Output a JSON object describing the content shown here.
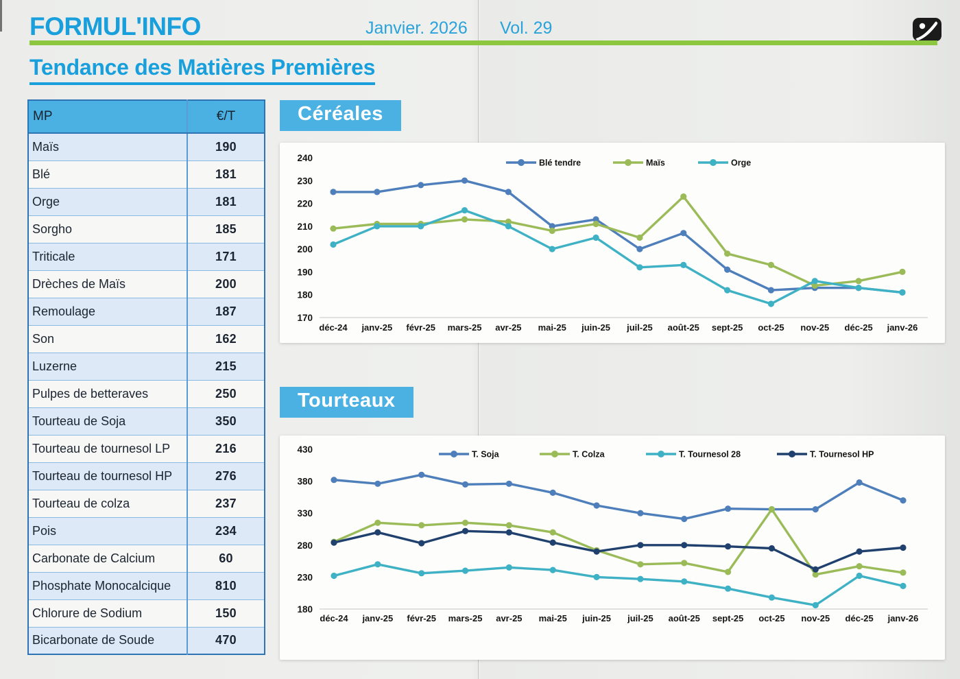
{
  "page": {
    "brand": "FORMUL'INFO",
    "date": "Janvier. 2026",
    "volume": "Vol. 29",
    "title": "Tendance des Matières Premières"
  },
  "colors": {
    "accent_blue": "#189fdc",
    "banner_blue": "#4bb1e3",
    "green_bar": "#8dc63f",
    "table_border": "#2e74b5"
  },
  "sections": {
    "cereales": "Céréales",
    "tourteaux": "Tourteaux"
  },
  "table": {
    "headers": [
      "MP",
      "€/T"
    ],
    "rows": [
      {
        "mp": "Maïs",
        "price": "190"
      },
      {
        "mp": "Blé",
        "price": "181"
      },
      {
        "mp": "Orge",
        "price": "181"
      },
      {
        "mp": "Sorgho",
        "price": "185"
      },
      {
        "mp": "Triticale",
        "price": "171"
      },
      {
        "mp": "Drèches de Maïs",
        "price": "200"
      },
      {
        "mp": "Remoulage",
        "price": "187"
      },
      {
        "mp": "Son",
        "price": "162"
      },
      {
        "mp": "Luzerne",
        "price": "215"
      },
      {
        "mp": "Pulpes de betteraves",
        "price": "250"
      },
      {
        "mp": "Tourteau de Soja",
        "price": "350"
      },
      {
        "mp": "Tourteau de tournesol LP",
        "price": "216"
      },
      {
        "mp": "Tourteau de tournesol HP",
        "price": "276"
      },
      {
        "mp": "Tourteau de colza",
        "price": "237"
      },
      {
        "mp": "Pois",
        "price": "234"
      },
      {
        "mp": "Carbonate de Calcium",
        "price": "60"
      },
      {
        "mp": "Phosphate Monocalcique",
        "price": "810"
      },
      {
        "mp": "Chlorure de Sodium",
        "price": "150"
      },
      {
        "mp": "Bicarbonate de Soude",
        "price": "470"
      }
    ]
  },
  "chart_data": [
    {
      "type": "line",
      "title": "Céréales",
      "categories": [
        "déc-24",
        "janv-25",
        "févr-25",
        "mars-25",
        "avr-25",
        "mai-25",
        "juin-25",
        "juil-25",
        "août-25",
        "sept-25",
        "oct-25",
        "nov-25",
        "déc-25",
        "janv-26"
      ],
      "ylim": [
        170,
        240
      ],
      "yticks": [
        240,
        230,
        220,
        210,
        200,
        190,
        180,
        170
      ],
      "grid": false,
      "legend_position": "top",
      "series": [
        {
          "name": "Blé tendre",
          "color": "#4e7fbb",
          "values": [
            225,
            225,
            228,
            230,
            225,
            210,
            213,
            200,
            207,
            191,
            182,
            183,
            183,
            181
          ]
        },
        {
          "name": "Maïs",
          "color": "#9bbb59",
          "values": [
            209,
            211,
            211,
            213,
            212,
            208,
            211,
            205,
            223,
            198,
            193,
            184,
            186,
            190
          ]
        },
        {
          "name": "Orge",
          "color": "#3fb1c5",
          "values": [
            202,
            210,
            210,
            217,
            210,
            200,
            205,
            192,
            193,
            182,
            176,
            186,
            183,
            181
          ]
        }
      ]
    },
    {
      "type": "line",
      "title": "Tourteaux",
      "categories": [
        "déc-24",
        "janv-25",
        "févr-25",
        "mars-25",
        "avr-25",
        "mai-25",
        "juin-25",
        "juil-25",
        "août-25",
        "sept-25",
        "oct-25",
        "nov-25",
        "déc-25",
        "janv-26"
      ],
      "ylim": [
        180,
        430
      ],
      "yticks": [
        430,
        380,
        330,
        280,
        230,
        180
      ],
      "grid": false,
      "legend_position": "top",
      "series": [
        {
          "name": "T. Soja",
          "color": "#4e7fbb",
          "values": [
            382,
            376,
            390,
            375,
            376,
            362,
            342,
            330,
            321,
            337,
            336,
            336,
            378,
            350
          ]
        },
        {
          "name": "T. Colza",
          "color": "#9bbb59",
          "values": [
            285,
            315,
            311,
            315,
            311,
            300,
            272,
            250,
            252,
            238,
            336,
            234,
            247,
            237
          ]
        },
        {
          "name": "T. Tournesol 28",
          "color": "#3fb1c5",
          "values": [
            232,
            250,
            236,
            240,
            245,
            241,
            230,
            227,
            223,
            212,
            198,
            186,
            232,
            216
          ]
        },
        {
          "name": "T. Tournesol HP",
          "color": "#20416e",
          "values": [
            284,
            300,
            283,
            302,
            300,
            284,
            270,
            280,
            280,
            278,
            275,
            242,
            270,
            276
          ]
        }
      ]
    }
  ]
}
